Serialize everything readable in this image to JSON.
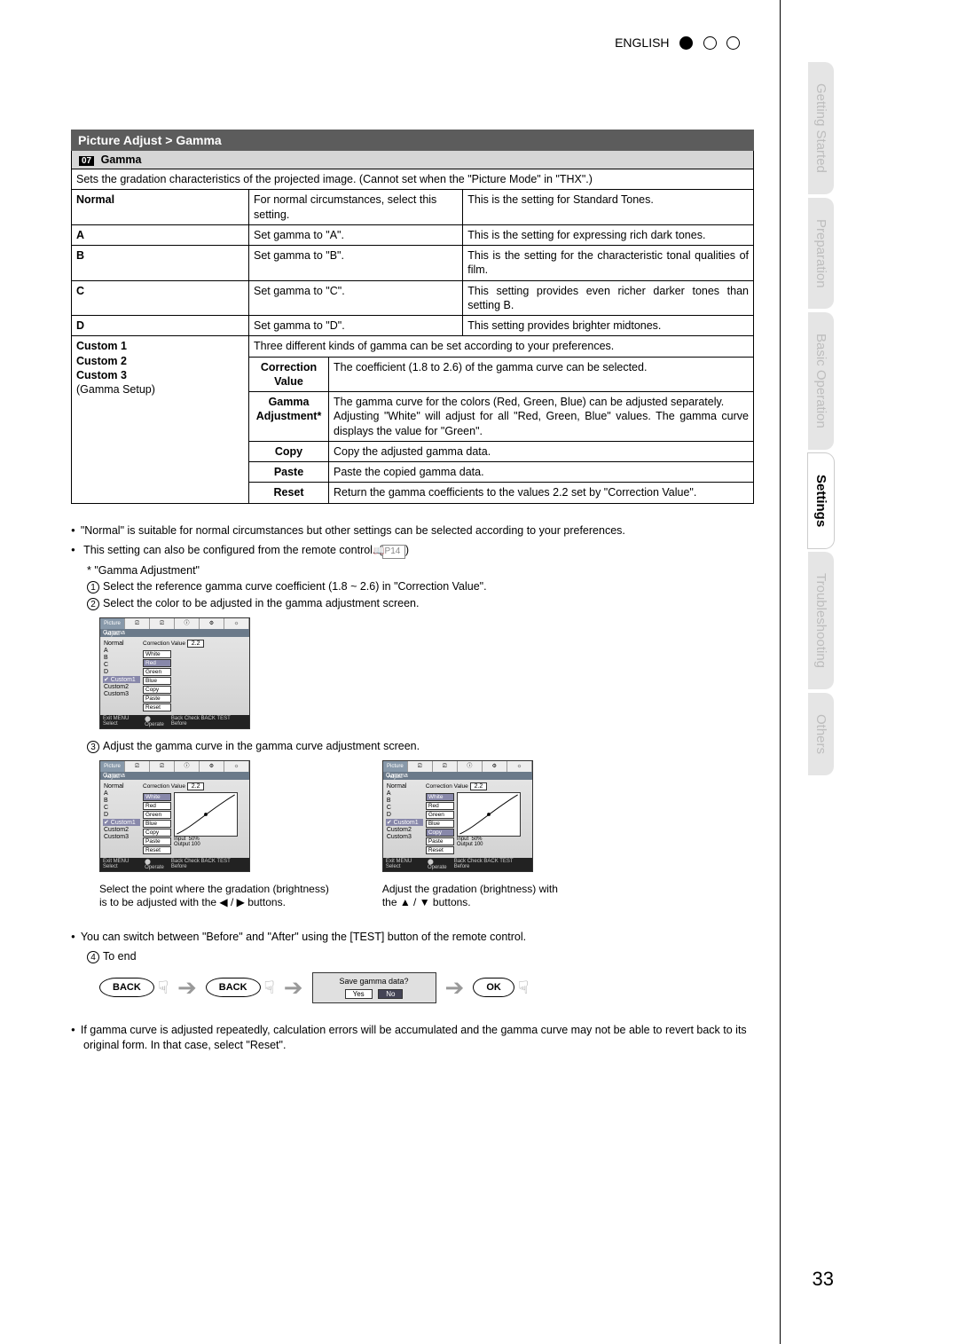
{
  "language_label": "ENGLISH",
  "page_number": "33",
  "breadcrumb": "Picture Adjust > Gamma",
  "gamma_num": "07",
  "gamma_title": "Gamma",
  "gamma_desc": "Sets the gradation characteristics of the projected image. (Cannot set when the \"Picture Mode\" in \"THX\".)",
  "rows": {
    "normal": {
      "label": "Normal",
      "mid": "For normal circumstances, select this setting.",
      "right": "This is the setting for Standard Tones."
    },
    "a": {
      "label": "A",
      "mid": "Set gamma to \"A\".",
      "right": "This is the setting for expressing rich dark tones."
    },
    "b": {
      "label": "B",
      "mid": "Set gamma to \"B\".",
      "right": "This is the setting for the characteristic tonal qualities of film."
    },
    "c": {
      "label": "C",
      "mid": "Set gamma to \"C\".",
      "right": "This setting provides even richer darker tones than setting B."
    },
    "d": {
      "label": "D",
      "mid": "Set gamma to \"D\".",
      "right": "This setting provides brighter midtones."
    }
  },
  "custom_label_1": "Custom 1",
  "custom_label_2": "Custom 2",
  "custom_label_3": "Custom 3",
  "custom_sub": "(Gamma Setup)",
  "custom_intro": "Three different kinds of gamma can be set according to your preferences.",
  "subrows": {
    "correction": {
      "label": "Correction Value",
      "text": "The coefficient (1.8 to 2.6) of the gamma curve can be selected."
    },
    "gammaadj": {
      "label": "Gamma Adjustment*",
      "text": "The gamma curve for the colors (Red, Green, Blue) can be adjusted separately.\nAdjusting \"White\" will adjust for all \"Red, Green, Blue\" values. The gamma curve displays the value for \"Green\"."
    },
    "copy": {
      "label": "Copy",
      "text": "Copy the adjusted gamma data."
    },
    "paste": {
      "label": "Paste",
      "text": "Paste the copied gamma data."
    },
    "reset": {
      "label": "Reset",
      "text": "Return the gamma coefficients to the values 2.2 set by \"Correction Value\"."
    }
  },
  "notes": {
    "n1": "\"Normal\" is suitable for normal circumstances but other settings can be selected according to your preferences.",
    "n2": "This setting can also be configured from the remote control. (",
    "pref": "P14",
    "n2b": ")",
    "star": "* \"Gamma Adjustment\"",
    "s1": "Select the reference gamma curve coefficient (1.8 ~ 2.6) in \"Correction Value\".",
    "s2": "Select the color to be adjusted in the gamma adjustment screen.",
    "s3": "Adjust the gamma curve in the gamma curve adjustment screen.",
    "cap_left_a": "Select the point where the gradation (brightness)",
    "cap_left_b": "is to be adjusted with the ◀ / ▶ buttons.",
    "cap_right_a": "Adjust the gradation (brightness) with",
    "cap_right_b": "the ▲ / ▼ buttons.",
    "n3": "You can switch between \"Before\" and \"After\" using the [TEST] button of the remote control.",
    "s4": "To end",
    "n4": "If gamma curve is adjusted repeatedly, calculation errors will be accumulated and the gamma curve may not be able to revert back to its original form. In that case, select \"Reset\"."
  },
  "flow": {
    "back": "BACK",
    "ok": "OK",
    "save_q": "Save gamma data?",
    "yes": "Yes",
    "no": "No"
  },
  "mini": {
    "tab": "Picture Adjust",
    "title": "Gamma",
    "items": [
      "Normal",
      "A",
      "B",
      "C",
      "D",
      "Custom1",
      "Custom2",
      "Custom3"
    ],
    "cv_label": "Correction Value",
    "cv_val": "2.2",
    "colors": [
      "White",
      "Red",
      "Green",
      "Blue"
    ],
    "ops": [
      "Copy",
      "Paste",
      "Reset"
    ],
    "io": "Input  50%\nOutput 100",
    "footer_l": "Exit\nMENU Select",
    "footer_m": "Operate",
    "footer_r": "Back  Check\nBACK  TEST  Before"
  },
  "tabs": [
    "Getting Started",
    "Preparation",
    "Basic Operation",
    "Settings",
    "Troubleshooting",
    "Others"
  ],
  "active_tab": 3
}
